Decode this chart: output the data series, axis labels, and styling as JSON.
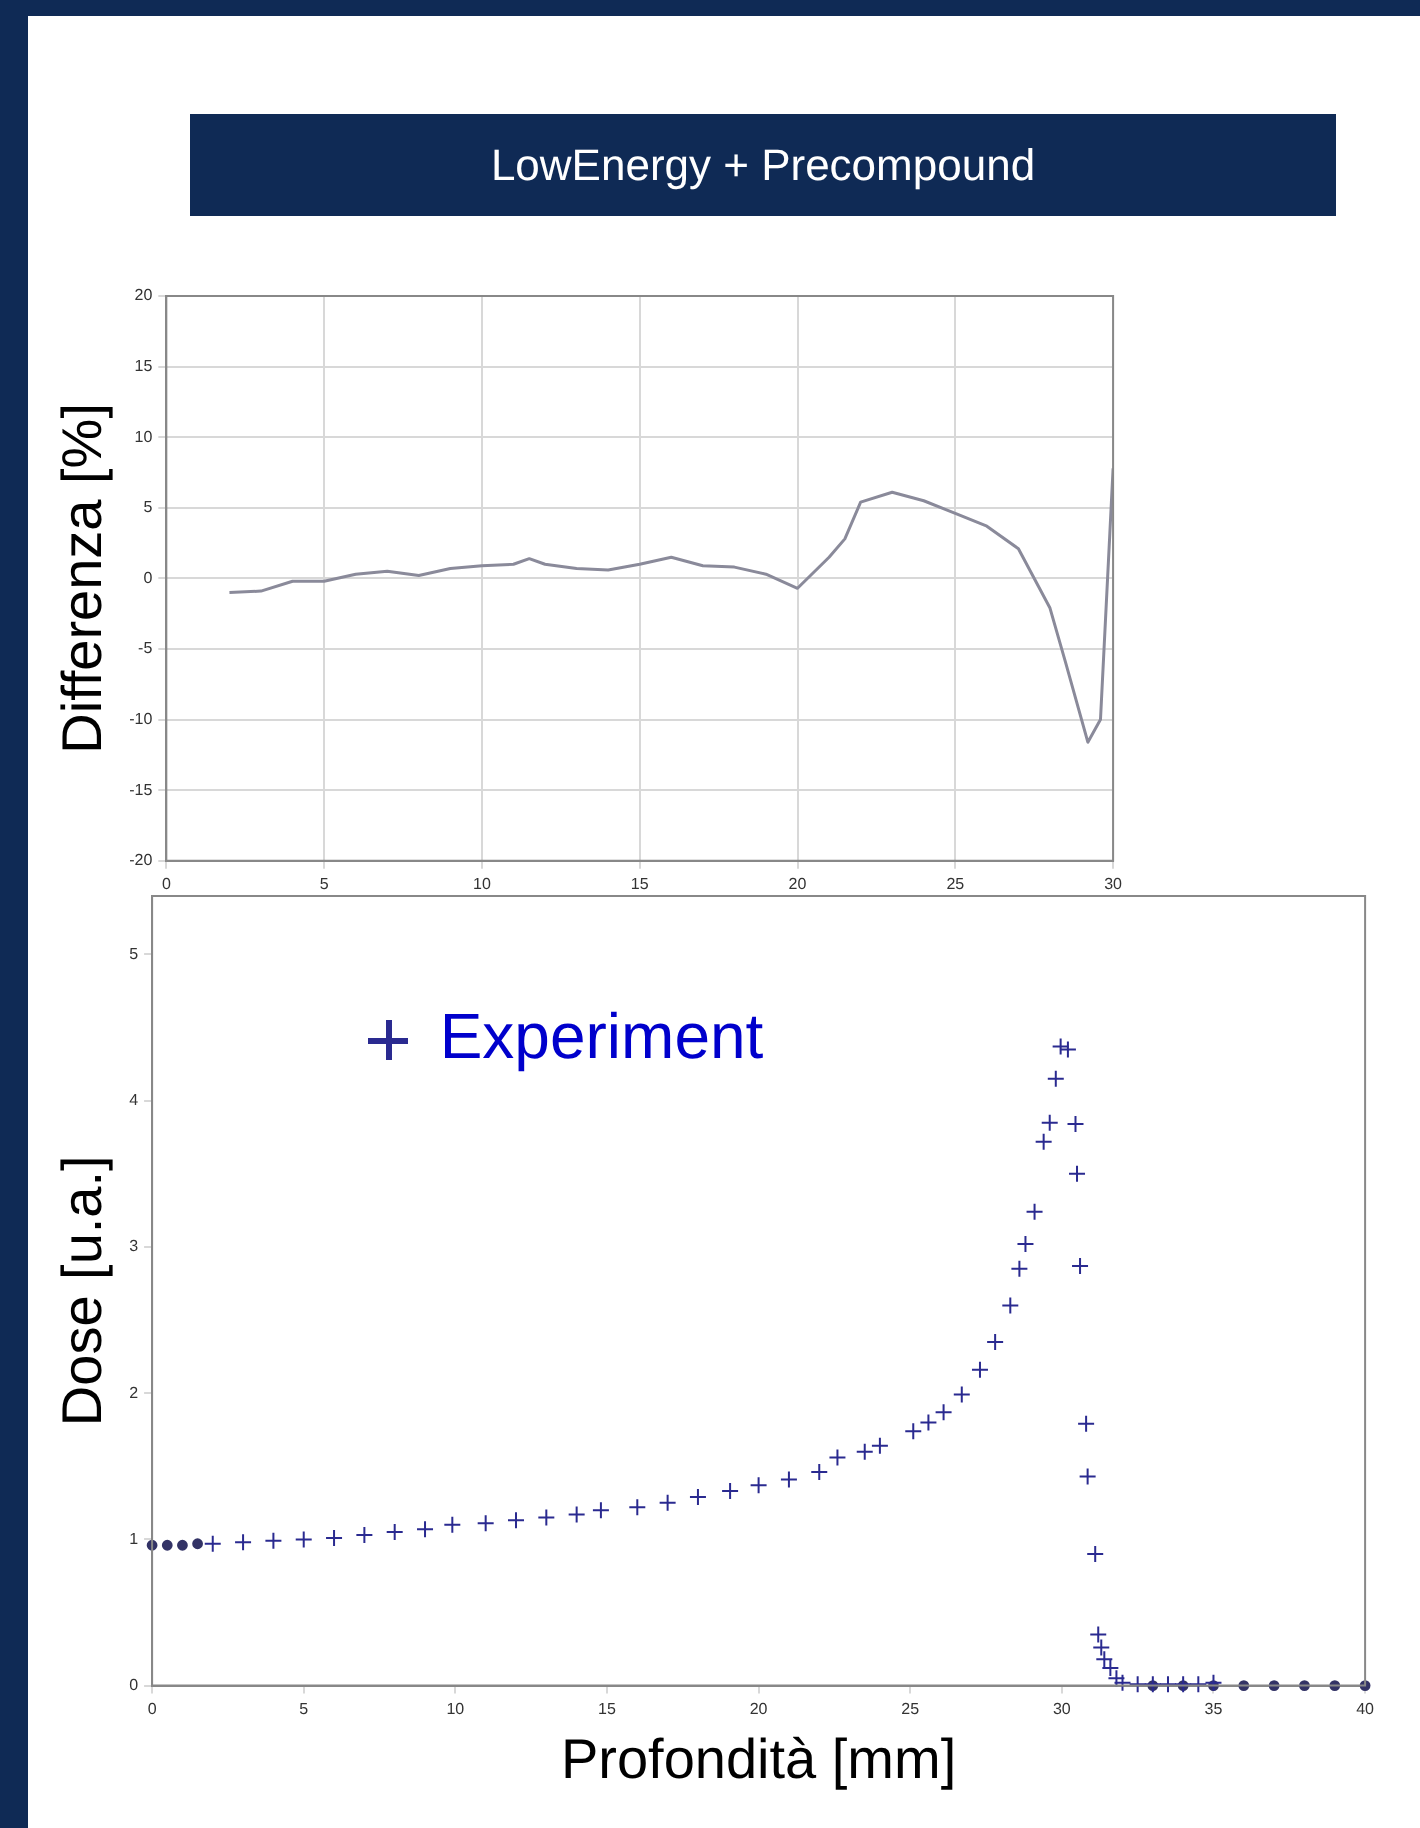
{
  "chart_data": [
    {
      "type": "line",
      "title": "LowEnergy + Precompound",
      "ylabel": "Differenza [%]",
      "xlim": [
        0,
        30
      ],
      "xticks": [
        0,
        5,
        10,
        15,
        20,
        25,
        30
      ],
      "ylim": [
        -20,
        20
      ],
      "yticks": [
        -20,
        -15,
        -10,
        -5,
        0,
        5,
        10,
        15,
        20
      ],
      "grid": true,
      "marker": "none",
      "line_style": "solid",
      "series": [
        {
          "color": "#8a8a9a",
          "x": [
            2,
            3,
            4,
            5,
            6,
            7,
            8,
            9,
            10,
            11,
            11.5,
            12,
            13,
            14,
            15,
            16,
            17,
            18,
            19,
            20,
            21,
            21.5,
            22,
            23,
            24,
            25,
            26,
            27,
            28,
            28.5,
            29.2,
            29.6,
            30
          ],
          "values": [
            -1.0,
            -0.9,
            -0.2,
            -0.2,
            0.3,
            0.5,
            0.2,
            0.7,
            0.9,
            1.0,
            1.4,
            1.0,
            0.7,
            0.6,
            1.0,
            1.5,
            0.9,
            0.8,
            0.3,
            -0.7,
            1.5,
            2.8,
            5.4,
            6.1,
            5.5,
            4.6,
            3.7,
            2.1,
            -2.1,
            -6,
            -11.6,
            -10,
            7.8
          ]
        }
      ]
    },
    {
      "type": "scatter",
      "xlabel": "Profondità [mm]",
      "ylabel": "Dose [u.a.]",
      "xlim": [
        0,
        40
      ],
      "xticks": [
        0,
        5,
        10,
        15,
        20,
        25,
        30,
        35,
        40
      ],
      "ylim": [
        0,
        5.4
      ],
      "yticks": [
        0,
        1,
        2,
        3,
        4,
        5
      ],
      "grid": false,
      "legend": "top left",
      "series": [
        {
          "name": "Experiment",
          "color": "#2a2a90",
          "marker": "cross",
          "x": [
            2,
            3,
            4,
            5,
            6,
            7,
            8,
            9,
            9.9,
            11,
            12,
            13,
            14,
            14.8,
            16,
            17,
            18,
            19.06,
            20,
            21,
            22,
            22.6,
            23.5,
            24,
            25.1,
            25.6,
            26.1,
            26.7,
            27.3,
            27.8,
            28.3,
            28.6,
            28.8,
            29.1,
            29.4,
            29.6,
            29.8,
            29.96,
            30.2,
            30.45,
            30.5,
            30.6,
            30.8,
            30.85,
            31.1,
            31.2,
            31.3,
            31.4,
            31.6,
            31.8,
            32,
            32.5,
            33,
            33.5,
            34,
            34.5,
            35
          ],
          "values": [
            0.97,
            0.98,
            0.99,
            1.0,
            1.01,
            1.03,
            1.05,
            1.07,
            1.1,
            1.11,
            1.13,
            1.15,
            1.17,
            1.2,
            1.22,
            1.25,
            1.29,
            1.33,
            1.37,
            1.41,
            1.46,
            1.56,
            1.6,
            1.64,
            1.74,
            1.8,
            1.87,
            1.99,
            2.16,
            2.35,
            2.6,
            2.85,
            3.02,
            3.24,
            3.72,
            3.85,
            4.15,
            4.37,
            4.35,
            3.84,
            3.5,
            2.87,
            1.79,
            1.43,
            0.9,
            0.35,
            0.26,
            0.18,
            0.12,
            0.05,
            0.02,
            0.01,
            0.01,
            0.01,
            0.01,
            0.01,
            0.02
          ]
        },
        {
          "color": "#333366",
          "marker": "circle",
          "x": [
            0,
            0.5,
            1,
            1.5,
            33,
            34,
            35,
            36,
            37,
            38,
            39,
            40
          ],
          "values": [
            0.96,
            0.96,
            0.96,
            0.97,
            0,
            0,
            0,
            0,
            0,
            0,
            0,
            0
          ]
        }
      ]
    }
  ]
}
